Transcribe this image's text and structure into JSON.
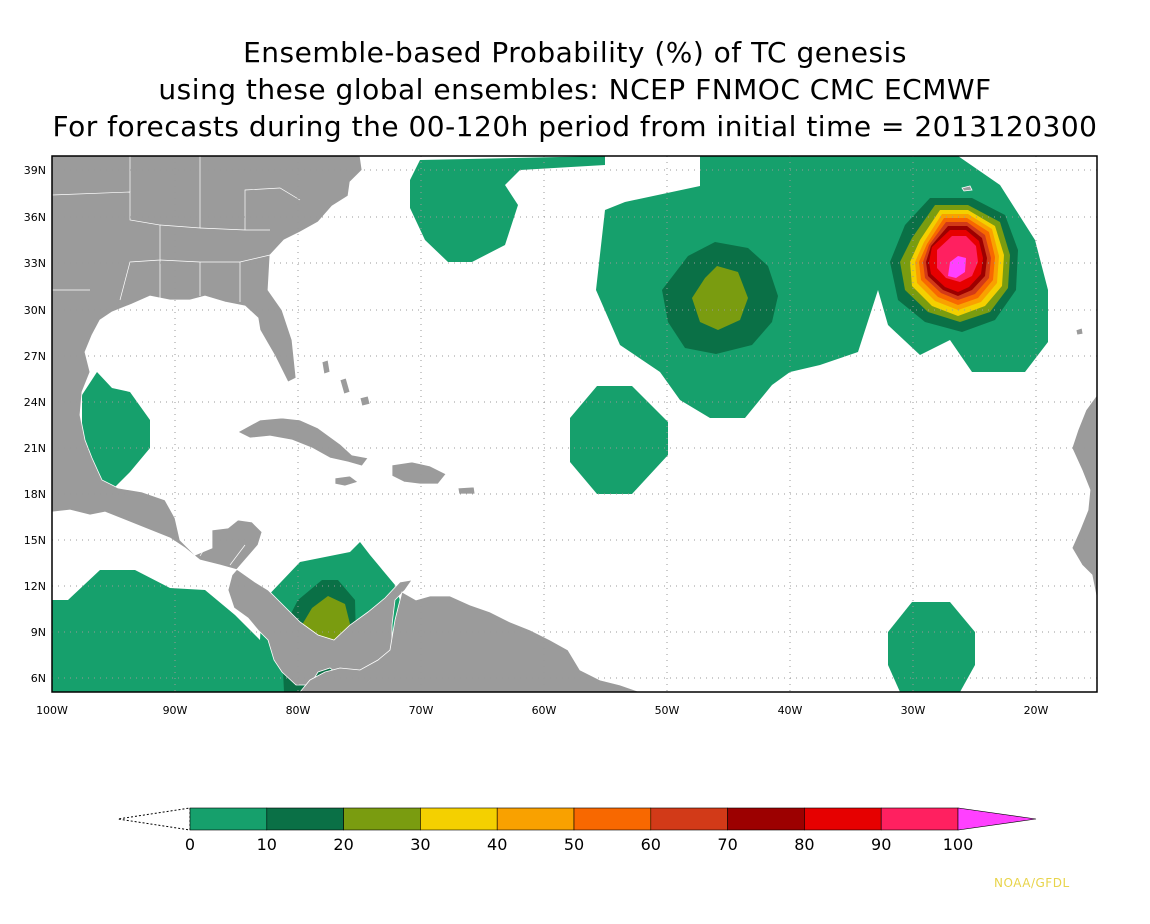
{
  "title": {
    "line1": "Ensemble-based Probability (%) of TC genesis",
    "line2": "using these global ensembles:   NCEP FNMOC CMC ECMWF",
    "line3": "For forecasts during the 00-120h period from initial time = 2013120300"
  },
  "map": {
    "lon_range": [
      -100,
      -15
    ],
    "lat_range": [
      5,
      40
    ],
    "lat_ticks": [
      "6N",
      "9N",
      "12N",
      "15N",
      "18N",
      "21N",
      "24N",
      "27N",
      "30N",
      "33N",
      "36N",
      "39N"
    ],
    "lon_ticks": [
      "100W",
      "90W",
      "80W",
      "70W",
      "60W",
      "50W",
      "40W",
      "30W",
      "20W"
    ],
    "grid": "dotted",
    "land_color": "#9b9b9b",
    "ocean_color": "#ffffff"
  },
  "colorbar": {
    "labels": [
      "0",
      "10",
      "20",
      "30",
      "40",
      "50",
      "60",
      "70",
      "80",
      "90",
      "100"
    ],
    "colors": [
      "#16a06c",
      "#0a7046",
      "#7a9c10",
      "#f4d000",
      "#f9a100",
      "#f86800",
      "#d23a18",
      "#9c0000",
      "#e60000",
      "#ff2060",
      "#ff40ff"
    ]
  },
  "credit": "NOAA/GFDL"
}
